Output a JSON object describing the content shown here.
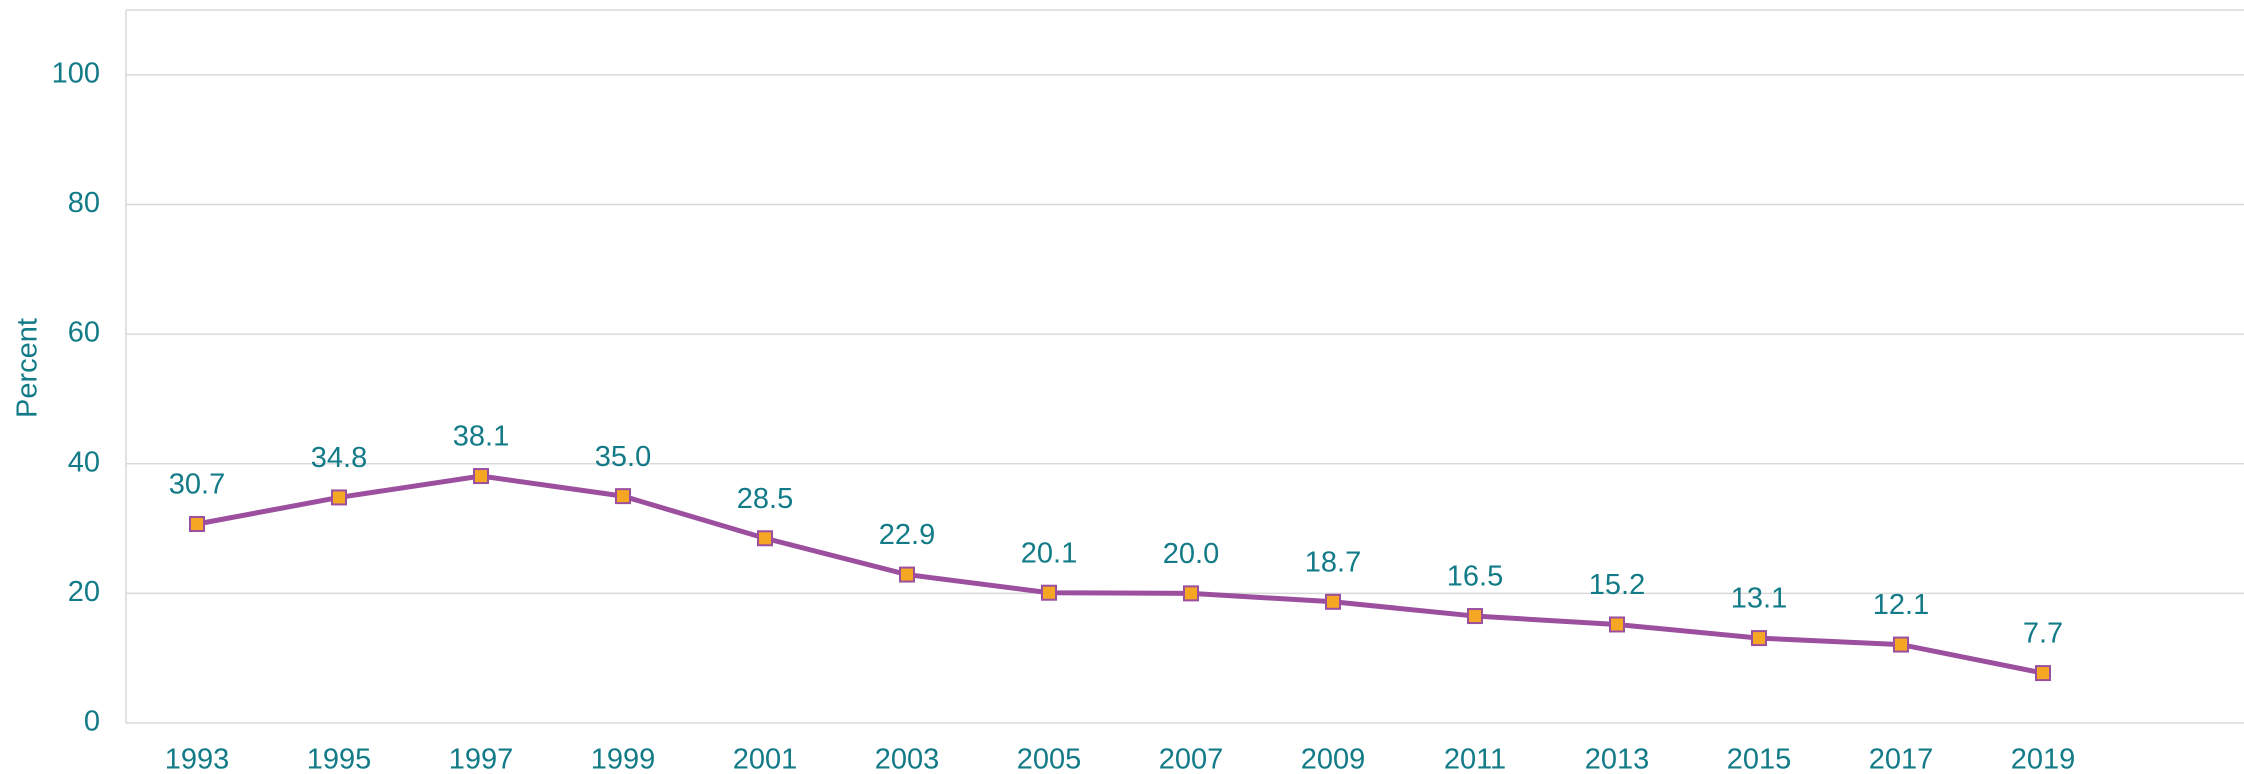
{
  "chart_data": {
    "type": "line",
    "y_label": "Percent",
    "categories": [
      "1993",
      "1995",
      "1997",
      "1999",
      "2001",
      "2003",
      "2005",
      "2007",
      "2009",
      "2011",
      "2013",
      "2015",
      "2017",
      "2019"
    ],
    "series": [
      {
        "color": "#9b4f9e",
        "marker_color": "#f5a623",
        "values": [
          30.7,
          34.8,
          38.1,
          35.0,
          28.5,
          22.9,
          20.1,
          20.0,
          18.7,
          16.5,
          15.2,
          13.1,
          12.1,
          7.7
        ],
        "value_labels": [
          "30.7",
          "34.8",
          "38.1",
          "35.0",
          "28.5",
          "22.9",
          "20.1",
          "20.0",
          "18.7",
          "16.5",
          "15.2",
          "13.1",
          "12.1",
          "7.7"
        ]
      }
    ],
    "ylim": [
      0,
      110
    ],
    "yticks": [
      0,
      20,
      40,
      60,
      80,
      100
    ],
    "grid": true
  }
}
